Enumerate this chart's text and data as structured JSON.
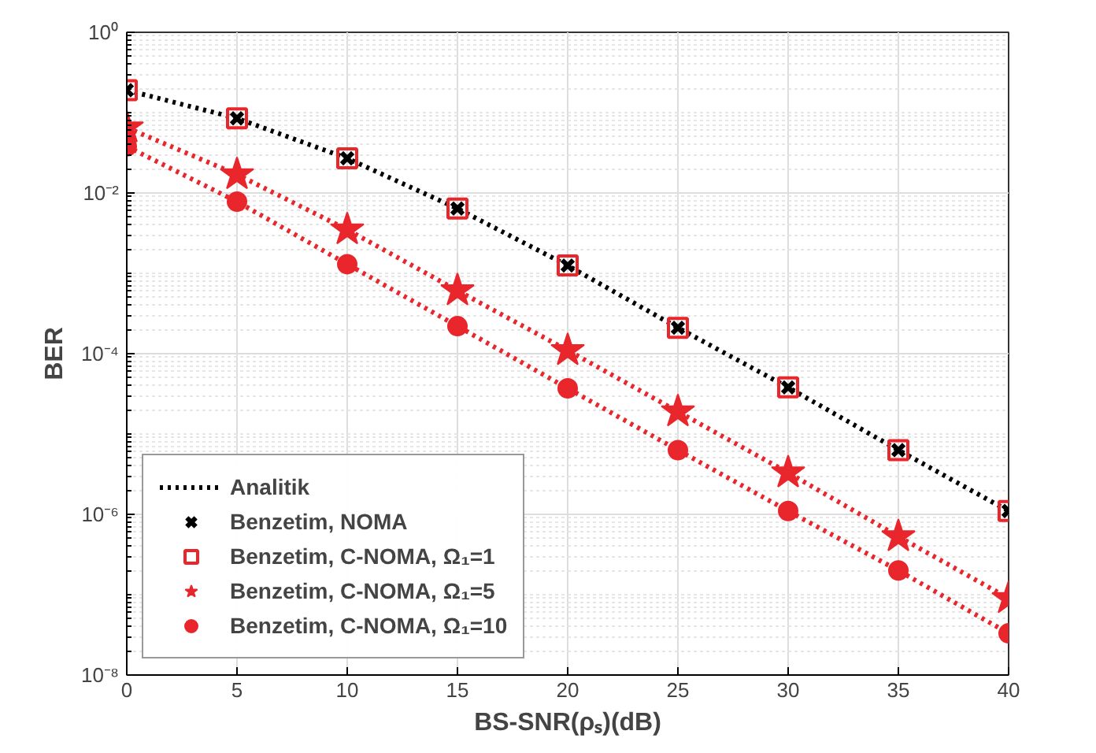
{
  "chart_data": {
    "type": "line",
    "xlabel": "BS-SNR(ρₛ)(dB)",
    "ylabel": "BER",
    "log": "y",
    "x": [
      0,
      5,
      10,
      15,
      20,
      25,
      30,
      35,
      40
    ],
    "xlim": [
      0,
      40
    ],
    "xticks": [
      0,
      5,
      10,
      15,
      20,
      25,
      30,
      35,
      40
    ],
    "ylim": [
      1e-08,
      1
    ],
    "yticks": [
      {
        "value": 1,
        "label": "10⁰"
      },
      {
        "value": 0.01,
        "label": "10⁻²"
      },
      {
        "value": 0.0001,
        "label": "10⁻⁴"
      },
      {
        "value": 1e-06,
        "label": "10⁻⁶"
      },
      {
        "value": 1e-08,
        "label": "10⁻⁸"
      }
    ],
    "grid": true,
    "legend": "bottom left",
    "series": [
      {
        "name": "Analitik",
        "color": "#000000",
        "marker": "none",
        "line_style": "dotted",
        "values": [
          0.19,
          0.085,
          0.027,
          0.0064,
          0.00125,
          0.00021,
          3.8e-05,
          6.3e-06,
          1.1e-06
        ]
      },
      {
        "name": "Benzetim, NOMA",
        "type": "scatter",
        "color": "#000000",
        "marker": "cross",
        "values": [
          0.19,
          0.085,
          0.027,
          0.0064,
          0.00125,
          0.00021,
          3.8e-05,
          6.3e-06,
          1.1e-06
        ]
      },
      {
        "name": "Benzetim, C-NOMA, Ω₁=1",
        "type": "scatter",
        "color": "#e8262b",
        "marker": "square",
        "values": [
          0.19,
          0.085,
          0.027,
          0.0064,
          0.00125,
          0.00021,
          3.8e-05,
          6.3e-06,
          1.1e-06
        ]
      },
      {
        "name": "Benzetim, C-NOMA, Ω₁=5",
        "type": "line",
        "color": "#e8262b",
        "marker": "star",
        "line_style": "dotted",
        "values": [
          0.065,
          0.017,
          0.0035,
          0.00061,
          0.00011,
          1.9e-05,
          3.3e-06,
          5.3e-07,
          9e-08
        ]
      },
      {
        "name": "Benzetim, C-NOMA, Ω₁=10",
        "type": "line",
        "color": "#e8262b",
        "marker": "circle",
        "line_style": "dotted",
        "values": [
          0.038,
          0.0078,
          0.0013,
          0.00022,
          3.7e-05,
          6.3e-06,
          1.1e-06,
          2e-07,
          3.3e-08
        ]
      }
    ]
  }
}
